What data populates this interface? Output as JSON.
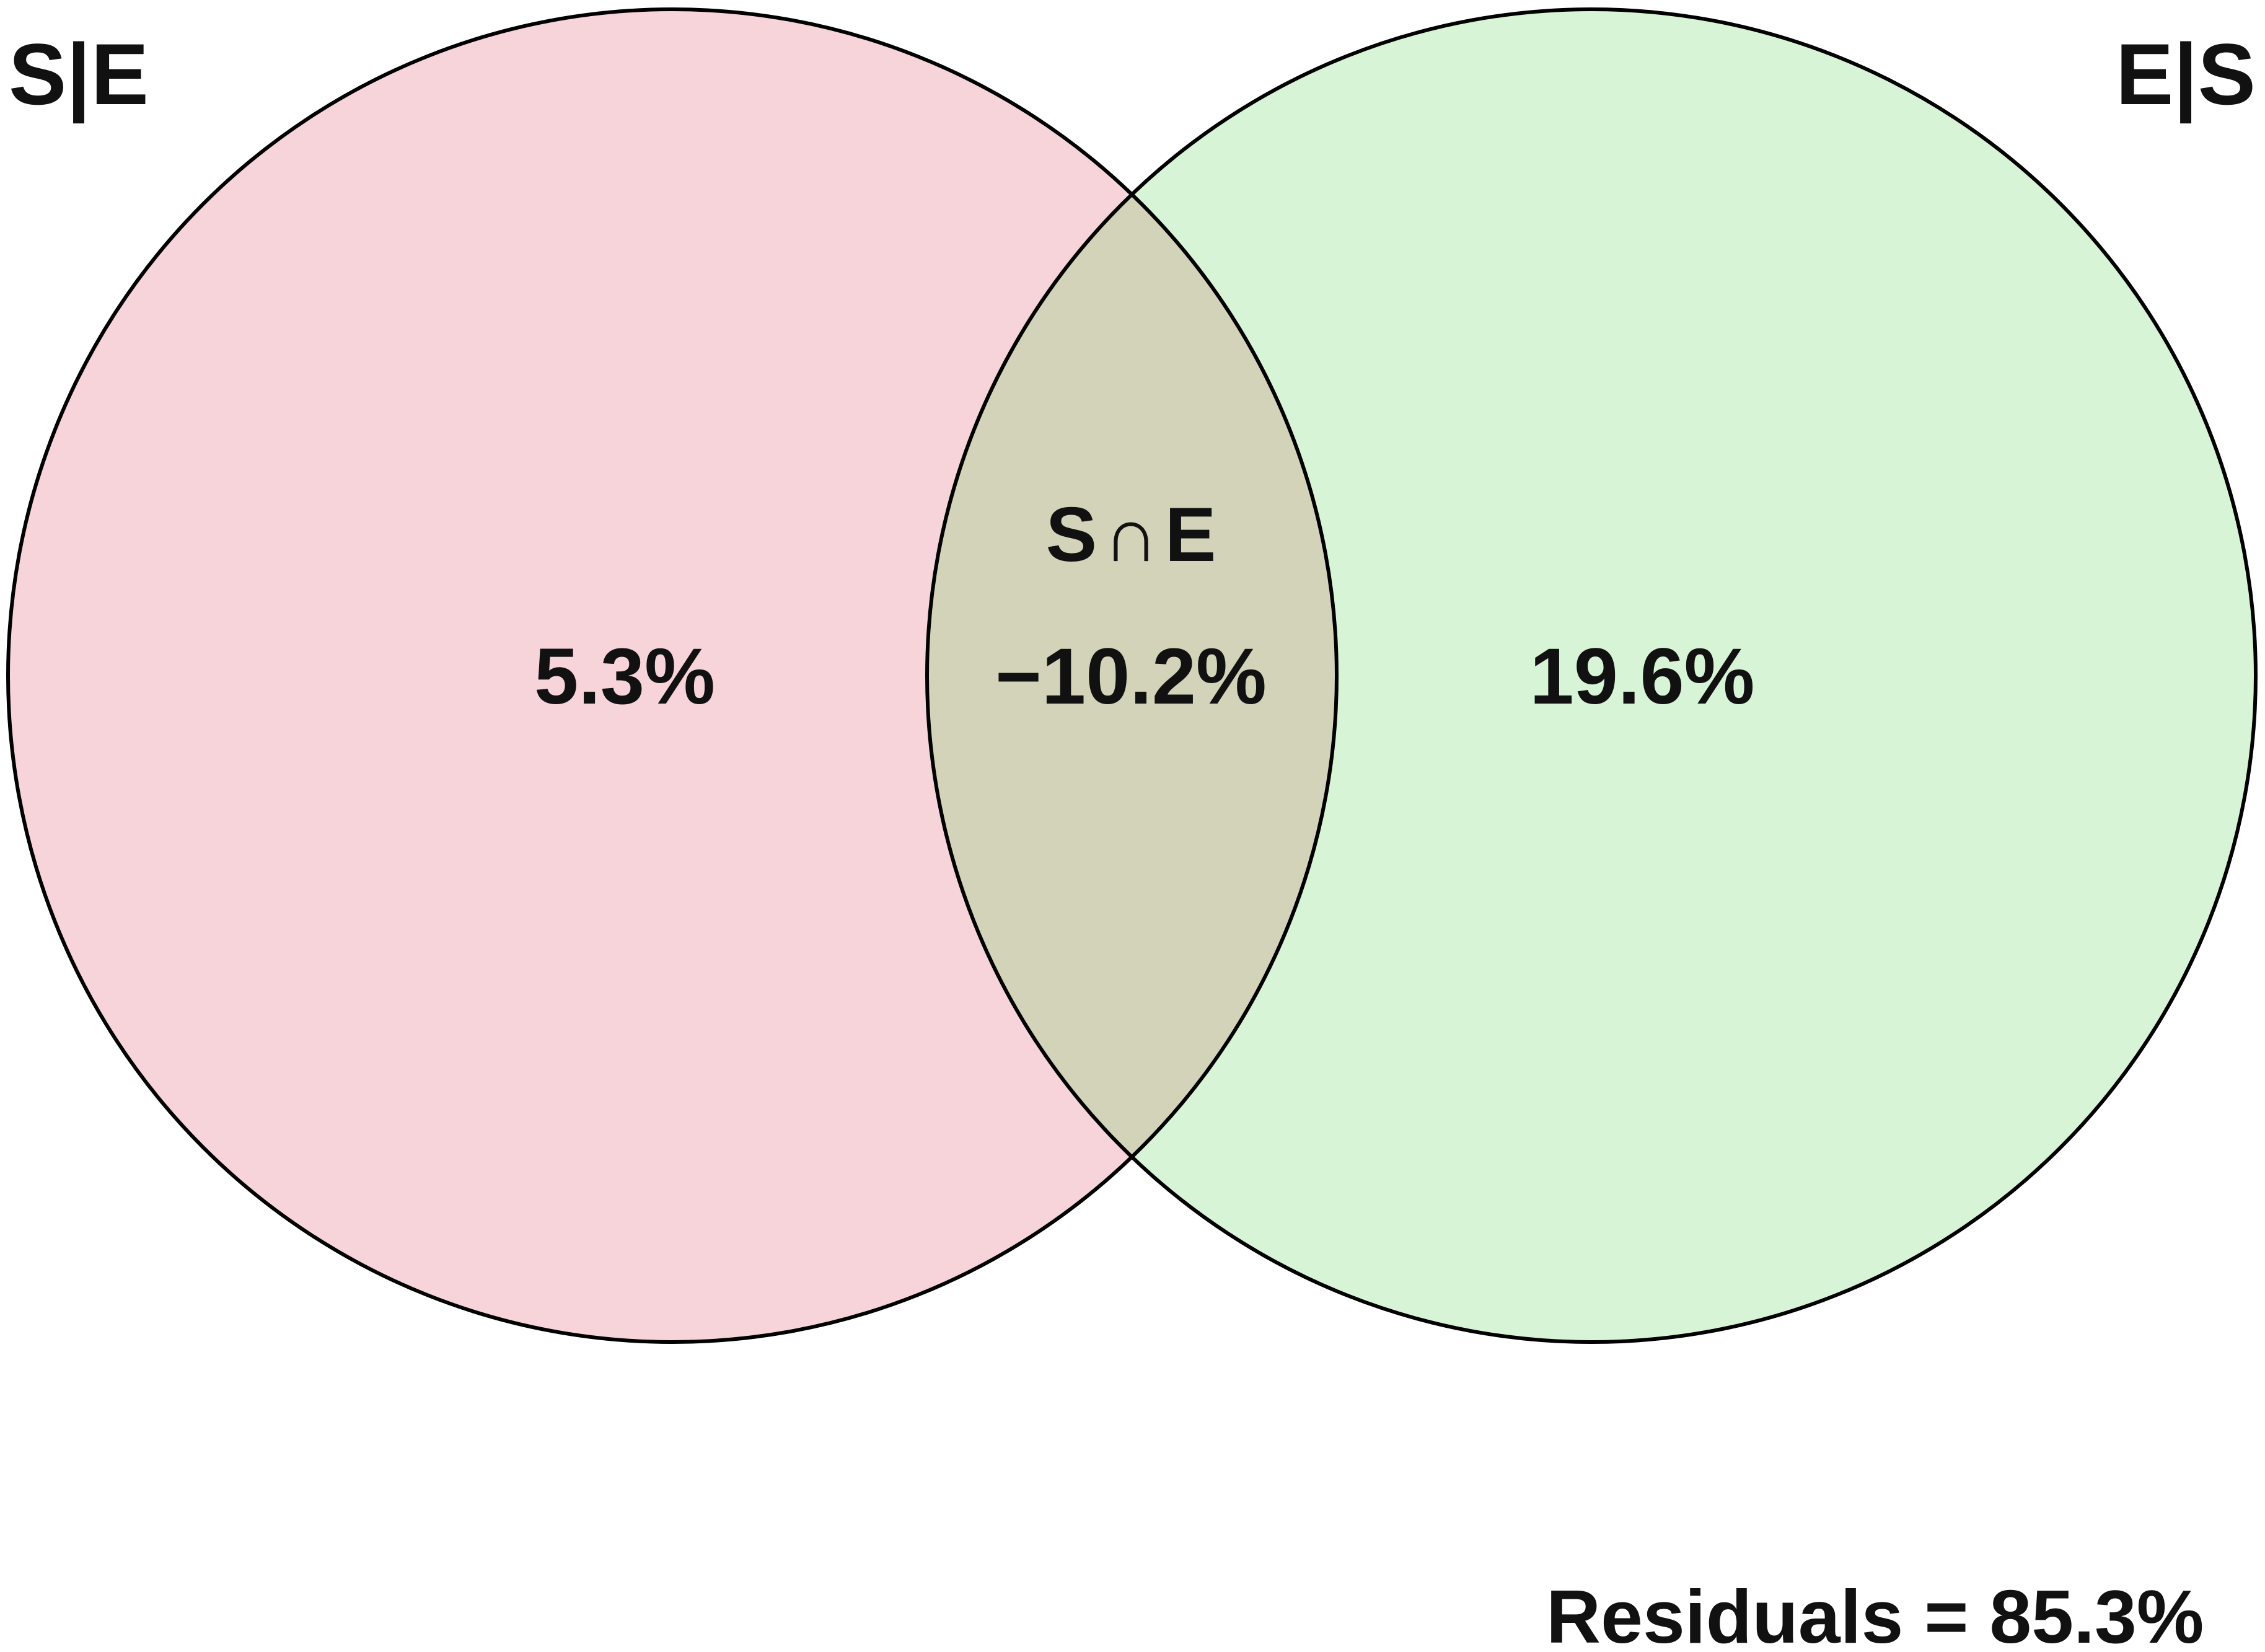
{
  "sets": [
    {
      "id": "left",
      "label": "S|E",
      "value": "5.3%",
      "color": "#f7d3da"
    },
    {
      "id": "right",
      "label": "E|S",
      "value": "19.6%",
      "color": "#d8f4d6"
    }
  ],
  "intersection": {
    "label": "S∩E",
    "value": "−10.2%",
    "color": "#d3d3b9"
  },
  "residuals": "Residuals =  85.3%"
}
